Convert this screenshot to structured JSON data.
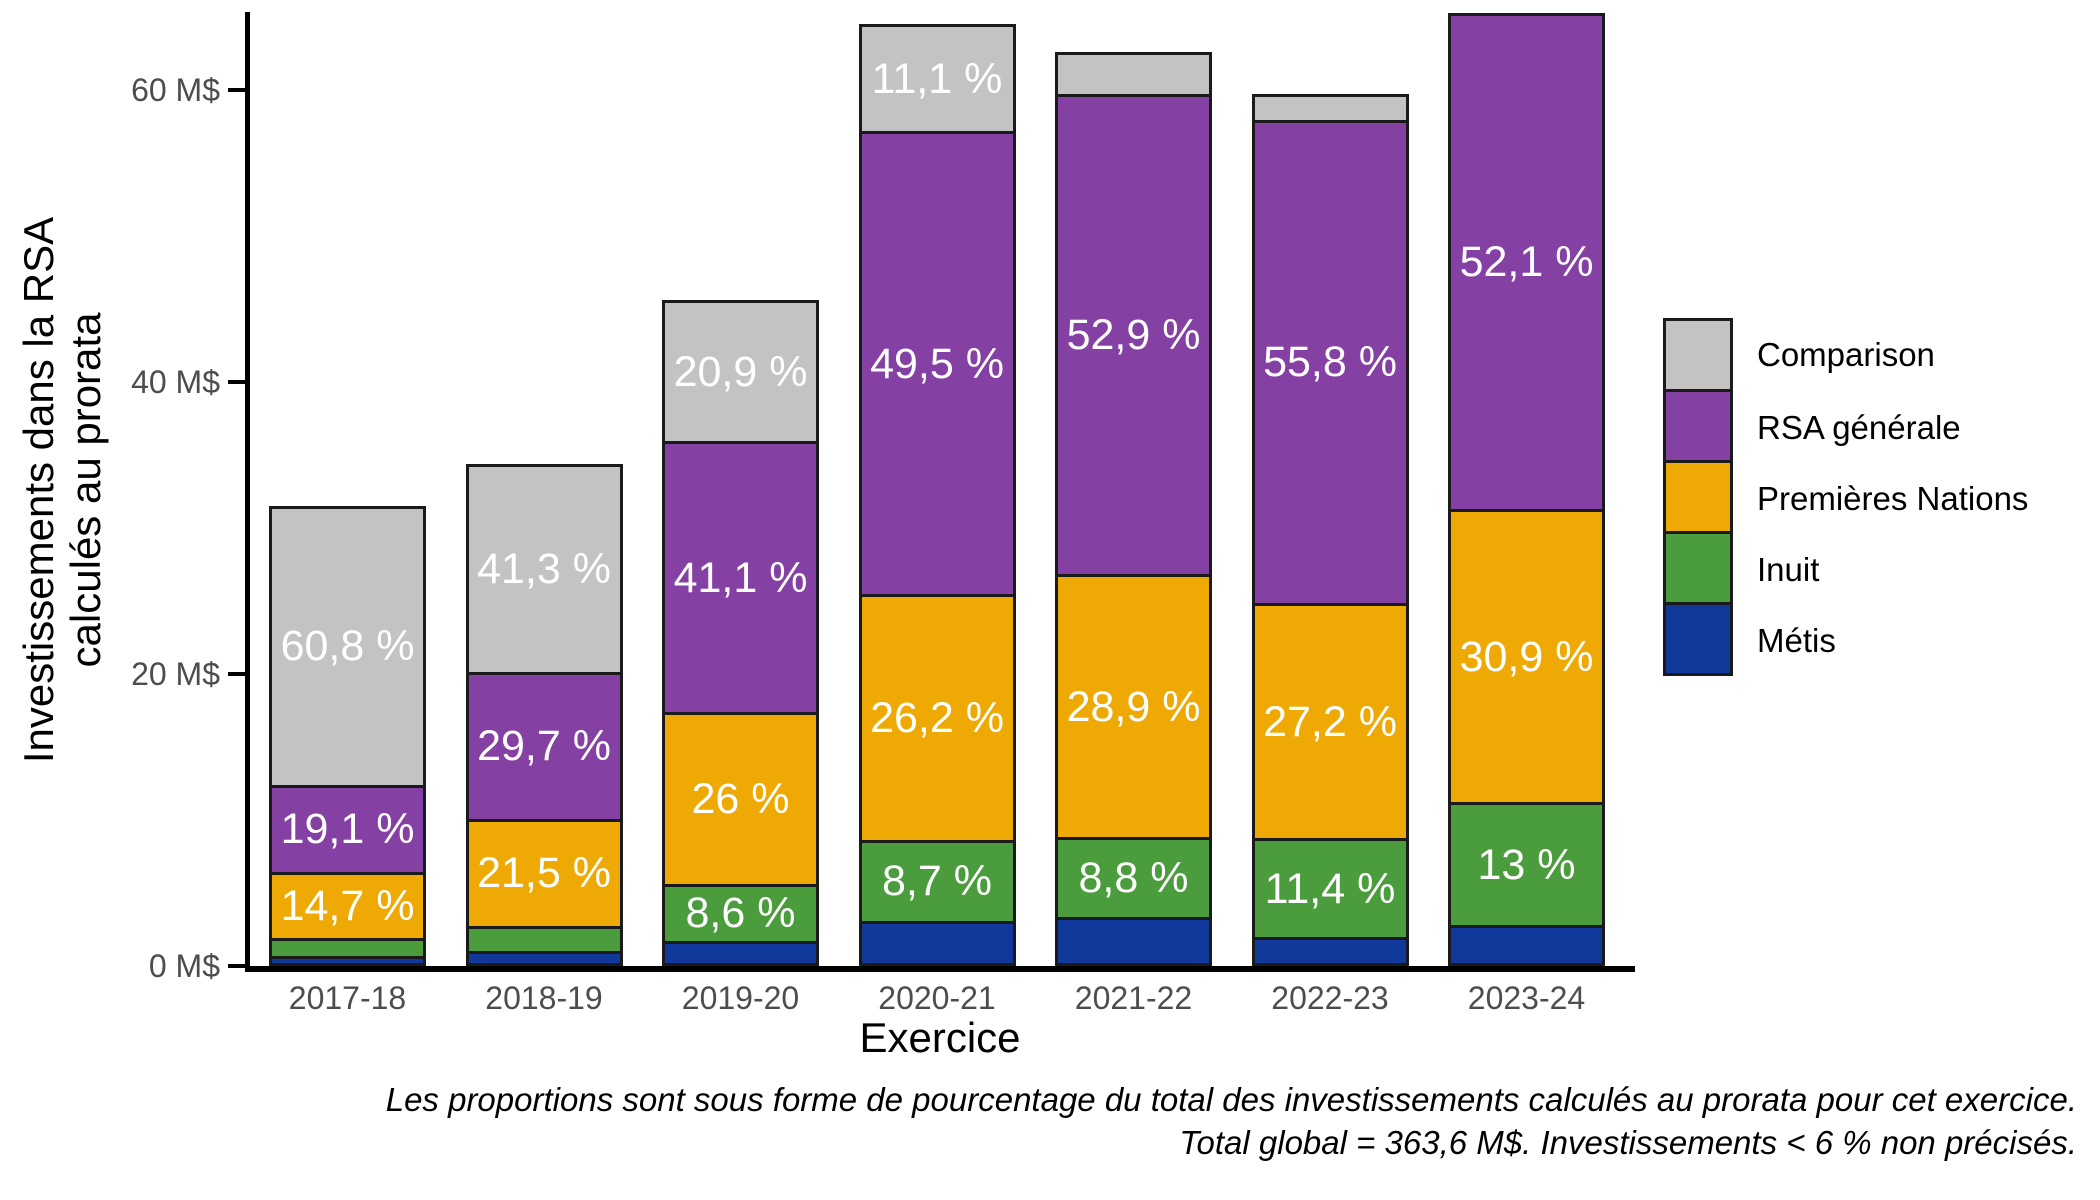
{
  "chart_data": {
    "type": "bar",
    "stacked": true,
    "x_axis": {
      "title": "Exercice",
      "categories": [
        "2017-18",
        "2018-19",
        "2019-20",
        "2020-21",
        "2021-22",
        "2022-23",
        "2023-24"
      ]
    },
    "y_axis": {
      "title_line1": "Investissements dans la RSA",
      "title_line2": "calculés au prorata",
      "unit": "M$",
      "range": [
        0,
        65.3
      ],
      "ticks": [
        {
          "value": 0,
          "label": "0 M$"
        },
        {
          "value": 20,
          "label": "20 M$"
        },
        {
          "value": 40,
          "label": "40 M$"
        },
        {
          "value": 60,
          "label": "60 M$"
        }
      ]
    },
    "bar_totals_m": [
      31.5,
      34.4,
      45.6,
      64.5,
      62.6,
      59.7,
      65.3
    ],
    "series": [
      {
        "name": "Métis",
        "color": "#11389B",
        "values_m": [
          0.45,
          0.86,
          1.55,
          2.9,
          3.19,
          1.79,
          2.61
        ],
        "percent_labels": [
          null,
          null,
          null,
          null,
          null,
          null,
          null
        ]
      },
      {
        "name": "Inuit",
        "color": "#4A9C3C",
        "values_m": [
          1.26,
          1.72,
          3.92,
          5.61,
          5.51,
          6.81,
          8.49
        ],
        "percent_labels": [
          null,
          null,
          "8,6 %",
          "8,7 %",
          "8,8 %",
          "11,4 %",
          "13 %"
        ]
      },
      {
        "name": "Premières Nations",
        "color": "#EEA904",
        "values_m": [
          4.63,
          7.4,
          11.86,
          16.9,
          18.09,
          16.24,
          20.18
        ],
        "percent_labels": [
          "14,7 %",
          "21,5 %",
          "26 %",
          "26,2 %",
          "28,9 %",
          "27,2 %",
          "30,9 %"
        ]
      },
      {
        "name": "RSA générale",
        "color": "#8440A3",
        "values_m": [
          6.02,
          10.22,
          18.74,
          31.93,
          33.12,
          33.31,
          34.02
        ],
        "percent_labels": [
          "19,1 %",
          "29,7 %",
          "41,1 %",
          "49,5 %",
          "52,9 %",
          "55,8 %",
          "52,1 %"
        ]
      },
      {
        "name": "Comparison",
        "color": "#C3C3C3",
        "values_m": [
          19.15,
          14.21,
          9.53,
          7.16,
          2.69,
          1.55,
          0
        ],
        "percent_labels": [
          "60,8 %",
          "41,3 %",
          "20,9 %",
          "11,1 %",
          null,
          null,
          null
        ]
      }
    ],
    "legend": {
      "order_top_to_bottom": [
        "Comparison",
        "RSA générale",
        "Premières Nations",
        "Inuit",
        "Métis"
      ]
    },
    "caption_line1": "Les proportions sont sous forme de pourcentage du total des investissements calculés au prorata pour cet exercice.",
    "caption_line2": "Total global = 363,6 M$. Investissements < 6 % non précisés.",
    "annotations": {
      "label_text_color": "#FFFFFF",
      "axis_text_color": "#4D4D4D",
      "outline_color": "#1A1A1A",
      "grid": "off",
      "legend_position": "right"
    }
  }
}
